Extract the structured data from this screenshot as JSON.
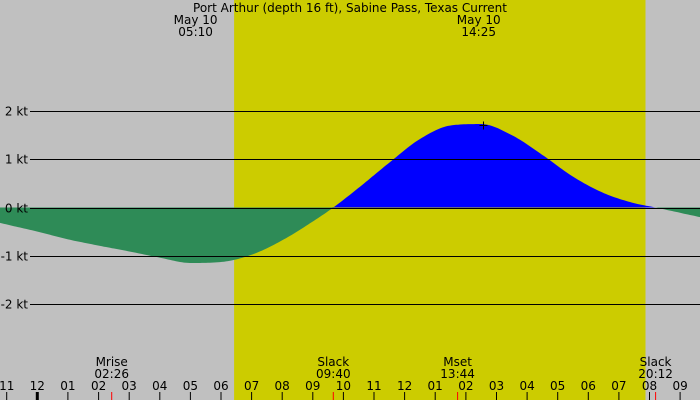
{
  "chart_data": {
    "type": "area",
    "title": "Port Arthur (depth 16 ft), Sabine Pass, Texas Current",
    "colors": {
      "background": "#c0c0c0",
      "daylight": "#cccc00",
      "flood": "#0000ff",
      "ebb": "#2e8b57",
      "gridline": "#000000",
      "event_tick": "#ff0000"
    },
    "sun_markers": [
      {
        "date": "May 10",
        "time": "05:10",
        "t": 5.17
      },
      {
        "date": "May 10",
        "time": "14:25",
        "t": 14.42
      }
    ],
    "daylight": {
      "start": 6.43,
      "end": 19.87
    },
    "x_range": [
      -1.22,
      21.65
    ],
    "y_range": [
      -2.85,
      2.85
    ],
    "y_ticks": [
      {
        "value": 2,
        "label": "2 kt"
      },
      {
        "value": 1,
        "label": "1 kt"
      },
      {
        "value": 0,
        "label": "0 kt"
      },
      {
        "value": -1,
        "label": "-1 kt"
      },
      {
        "value": -2,
        "label": "-2 kt"
      }
    ],
    "hour_ticks": [
      {
        "t": -1,
        "label": "11"
      },
      {
        "t": 0,
        "label": "12"
      },
      {
        "t": 1,
        "label": "01"
      },
      {
        "t": 2,
        "label": "02"
      },
      {
        "t": 3,
        "label": "03"
      },
      {
        "t": 4,
        "label": "04"
      },
      {
        "t": 5,
        "label": "05"
      },
      {
        "t": 6,
        "label": "06"
      },
      {
        "t": 7,
        "label": "07"
      },
      {
        "t": 8,
        "label": "08"
      },
      {
        "t": 9,
        "label": "09"
      },
      {
        "t": 10,
        "label": "10"
      },
      {
        "t": 11,
        "label": "11"
      },
      {
        "t": 12,
        "label": "12"
      },
      {
        "t": 13,
        "label": "01"
      },
      {
        "t": 14,
        "label": "02"
      },
      {
        "t": 15,
        "label": "03"
      },
      {
        "t": 16,
        "label": "04"
      },
      {
        "t": 17,
        "label": "05"
      },
      {
        "t": 18,
        "label": "06"
      },
      {
        "t": 19,
        "label": "07"
      },
      {
        "t": 20,
        "label": "08"
      },
      {
        "t": 21,
        "label": "09"
      }
    ],
    "events": [
      {
        "name": "Mrise",
        "time": "02:26",
        "t": 2.43
      },
      {
        "name": "Slack",
        "time": "09:40",
        "t": 9.67
      },
      {
        "name": "Mset",
        "time": "13:44",
        "t": 13.73
      },
      {
        "name": "Slack",
        "time": "20:12",
        "t": 20.2
      }
    ],
    "series": [
      {
        "x": [
          -1.22,
          0,
          1,
          2,
          3,
          4,
          5,
          6,
          7,
          8,
          9,
          9.67,
          10.5,
          11.5,
          12.5,
          13.5,
          14.5,
          15.5,
          16.5,
          17.5,
          18.5,
          19.5,
          20.2,
          21,
          21.65
        ],
        "values": [
          -0.32,
          -0.5,
          -0.66,
          -0.79,
          -0.91,
          -1.04,
          -1.15,
          -1.13,
          -0.98,
          -0.68,
          -0.29,
          0,
          0.41,
          0.93,
          1.42,
          1.7,
          1.73,
          1.5,
          1.09,
          0.64,
          0.3,
          0.09,
          0,
          -0.11,
          -0.2
        ]
      }
    ],
    "max_marker": {
      "t": 14.55,
      "value": 1.72
    }
  }
}
